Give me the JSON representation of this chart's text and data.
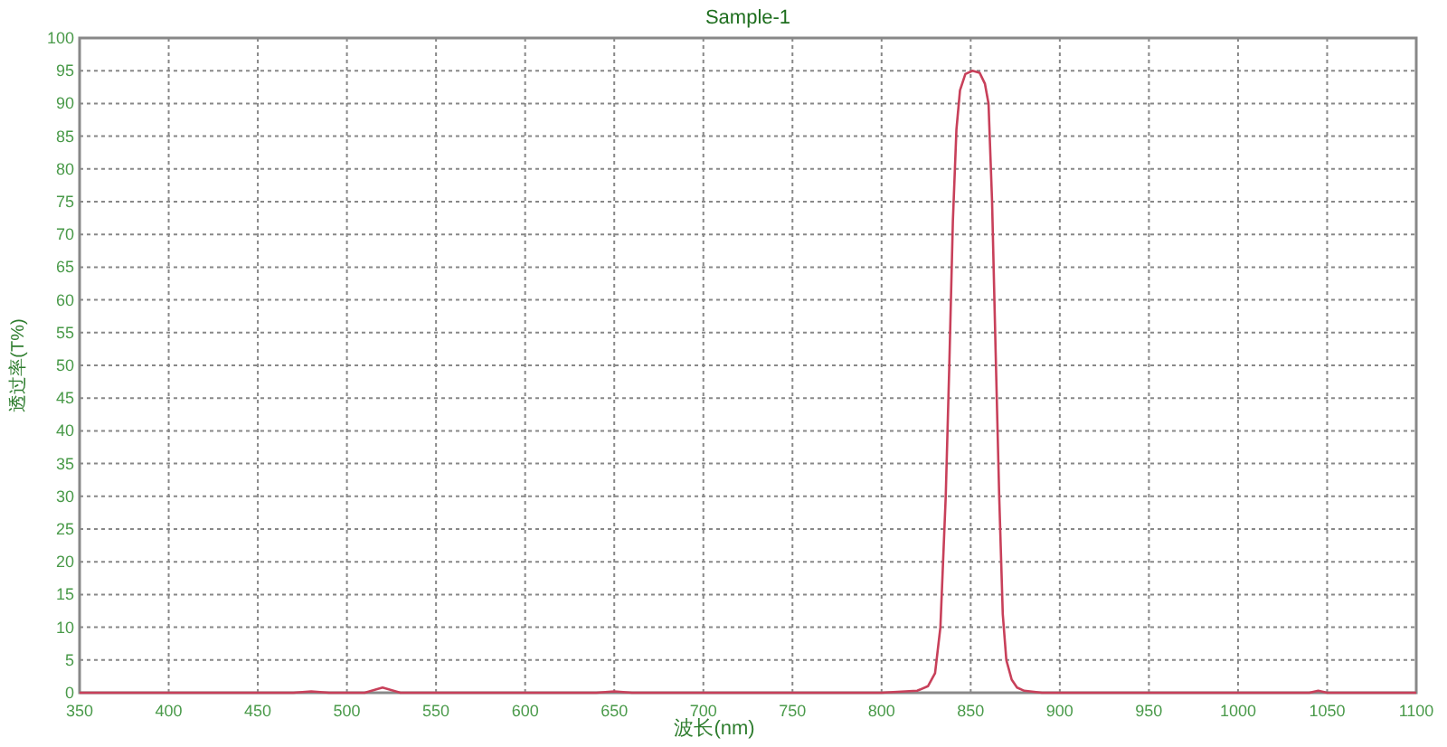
{
  "chart_data": {
    "type": "line",
    "title": "Sample-1",
    "xlabel": "波长(nm)",
    "ylabel": "透过率(T%)",
    "xlim": [
      350,
      1100
    ],
    "ylim": [
      0,
      100
    ],
    "xticks": [
      350,
      400,
      450,
      500,
      550,
      600,
      650,
      700,
      750,
      800,
      850,
      900,
      950,
      1000,
      1050,
      1100
    ],
    "yticks": [
      0,
      5,
      10,
      15,
      20,
      25,
      30,
      35,
      40,
      45,
      50,
      55,
      60,
      65,
      70,
      75,
      80,
      85,
      90,
      95,
      100
    ],
    "grid": true,
    "series": [
      {
        "color": "#c8405a",
        "x": [
          350,
          400,
          470,
          480,
          490,
          510,
          520,
          530,
          600,
          640,
          650,
          660,
          800,
          820,
          826,
          830,
          833,
          836,
          838,
          840,
          842,
          844,
          847,
          851,
          855,
          858,
          860,
          862,
          864,
          866,
          868,
          870,
          873,
          876,
          880,
          890,
          1040,
          1045,
          1050,
          1100
        ],
        "values": [
          0,
          0,
          0,
          0.2,
          0,
          0,
          0.8,
          0,
          0,
          0,
          0.2,
          0,
          0,
          0.3,
          1,
          3,
          10,
          30,
          50,
          72,
          86,
          92,
          94.5,
          95,
          94.7,
          93,
          90,
          75,
          52,
          30,
          12,
          5,
          2,
          0.8,
          0.3,
          0,
          0,
          0.3,
          0,
          0
        ]
      }
    ]
  }
}
